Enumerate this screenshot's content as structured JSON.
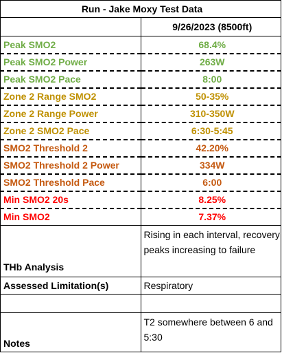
{
  "title": "Run - Jake Moxy Test Data",
  "date_header": "9/26/2023 (8500ft)",
  "colors": {
    "green": "#70AD47",
    "orange": "#BF9000",
    "burnt": "#C55A11",
    "red": "#FF0000"
  },
  "metrics": [
    {
      "label": "Peak SMO2",
      "value": "68.4%",
      "color": "#70AD47"
    },
    {
      "label": "Peak SMO2 Power",
      "value": "263W",
      "color": "#70AD47"
    },
    {
      "label": "Peak SMO2 Pace",
      "value": "8:00",
      "color": "#70AD47"
    },
    {
      "label": "Zone 2 Range SMO2",
      "value": "50-35%",
      "color": "#BF9000"
    },
    {
      "label": "Zone 2 Range Power",
      "value": "310-350W",
      "color": "#BF9000"
    },
    {
      "label": "Zone 2 SMO2 Pace",
      "value": "6:30-5:45",
      "color": "#BF9000"
    },
    {
      "label": "SMO2 Threshold 2",
      "value": "42.20%",
      "color": "#C55A11"
    },
    {
      "label": "SMO2 Threshold 2 Power",
      "value": "334W",
      "color": "#C55A11"
    },
    {
      "label": "SMO2 Threshold Pace",
      "value": "6:00",
      "color": "#C55A11"
    },
    {
      "label": "Min SMO2 20s",
      "value": "8.25%",
      "color": "#FF0000"
    },
    {
      "label": "Min SMO2",
      "value": "7.37%",
      "color": "#FF0000"
    }
  ],
  "thb": {
    "label": "THb Analysis",
    "value": "Rising in each interval, recovery peaks increasing to failure"
  },
  "limitation": {
    "label": "Assessed Limitation(s)",
    "value": "Respiratory"
  },
  "notes": {
    "label": "Notes",
    "value": "T2 somewhere between 6 and 5:30"
  }
}
